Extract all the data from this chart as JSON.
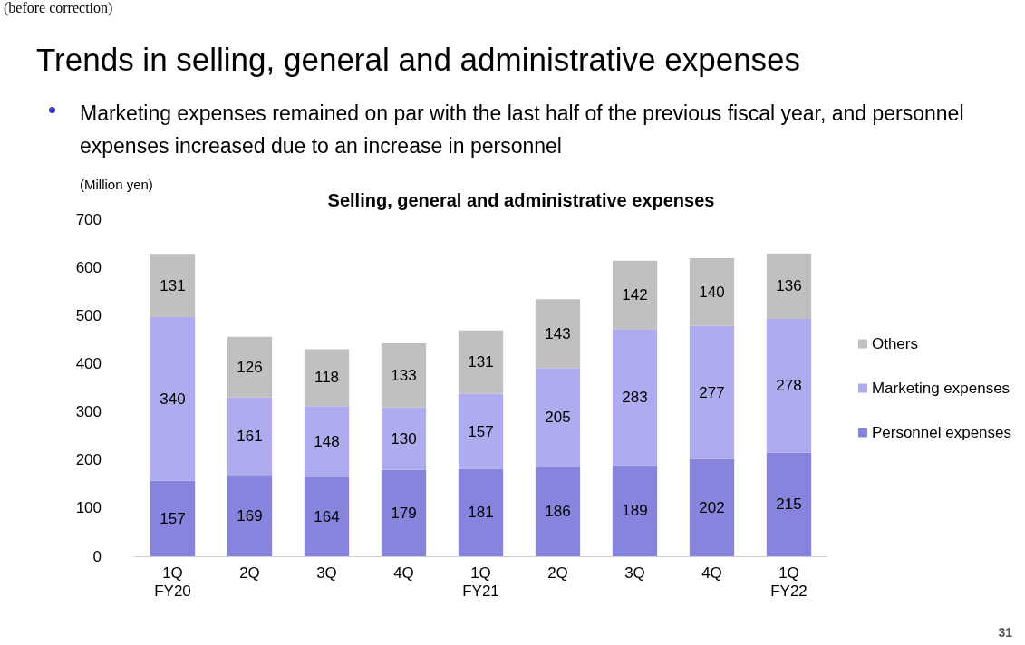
{
  "chart_data": {
    "type": "bar",
    "title": "Trends in selling, general and administrative expenses",
    "subtitle": "Marketing expenses remained on par with the last half of the previous fiscal year, and personnel expenses increased due to an increase in personnel",
    "annotations": [
      "(before correction)",
      "Selling, general and administrative expenses",
      "31"
    ],
    "ylabel": "(Million yen)",
    "categories": [
      "1Q\nFY20",
      "2Q",
      "3Q",
      "4Q",
      "1Q\nFY21",
      "2Q",
      "3Q",
      "4Q",
      "1Q\nFY22"
    ],
    "series": [
      {
        "name": "Personnel expenses",
        "color": "#8784de",
        "values": [
          157,
          169,
          164,
          179,
          181,
          186,
          189,
          202,
          215
        ]
      },
      {
        "name": "Marketing expenses",
        "color": "#aeabee",
        "values": [
          340,
          161,
          148,
          130,
          157,
          205,
          283,
          277,
          278
        ]
      },
      {
        "name": "Others",
        "color": "#c0c0c0",
        "values": [
          131,
          126,
          118,
          133,
          131,
          143,
          142,
          140,
          136
        ]
      }
    ],
    "stacked": true,
    "data_labels": true,
    "legend": "right",
    "grid": false,
    "ylim": [
      0,
      700
    ],
    "yticks": [
      0,
      100,
      200,
      300,
      400,
      500,
      600,
      700
    ]
  }
}
